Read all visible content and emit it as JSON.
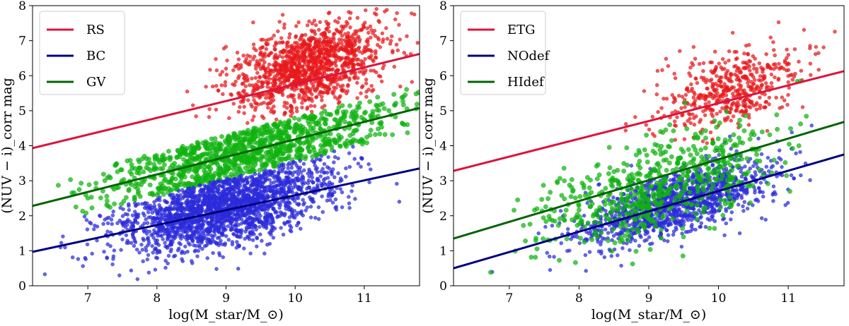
{
  "chart_data": [
    {
      "type": "scatter",
      "panel": "left",
      "xlabel": "log(M_star/M_⊙)",
      "ylabel": "(NUV − i)_corr mag",
      "xlim": [
        6.2,
        11.8
      ],
      "ylim": [
        0,
        8
      ],
      "xticks": [
        7,
        8,
        9,
        10,
        11
      ],
      "yticks": [
        0,
        1,
        2,
        3,
        4,
        5,
        6,
        7,
        8
      ],
      "legend_position": "top-left",
      "series": [
        {
          "name": "RS",
          "marker_color": "#e8191c",
          "line_color": "#dc143c",
          "line": {
            "x": [
              6.2,
              11.8
            ],
            "y": [
              3.93,
              6.62
            ]
          },
          "cloud": {
            "x_center": 10.2,
            "x_spread": 0.55,
            "y_offset_from_line": 0.45,
            "y_spread": 0.55,
            "n": 1300
          }
        },
        {
          "name": "GV",
          "marker_color": "#0fb30f",
          "line_color": "#006400",
          "line": {
            "x": [
              6.2,
              11.8
            ],
            "y": [
              2.28,
              5.08
            ]
          },
          "cloud": {
            "x_center": 9.3,
            "x_spread": 1.05,
            "y_offset_from_line": 0.0,
            "y_spread": 0.35,
            "n": 1100
          }
        },
        {
          "name": "BC",
          "marker_color": "#2b2bd9",
          "line_color": "#000080",
          "line": {
            "x": [
              6.2,
              11.8
            ],
            "y": [
              0.97,
              3.35
            ]
          },
          "cloud": {
            "x_center": 9.0,
            "x_spread": 0.75,
            "y_offset_from_line": 0.1,
            "y_spread": 0.55,
            "n": 2200
          }
        }
      ],
      "legend": [
        "RS",
        "BC",
        "GV"
      ]
    },
    {
      "type": "scatter",
      "panel": "right",
      "xlabel": "log(M_star/M_⊙)",
      "ylabel": "(NUV − i)_corr mag",
      "xlim": [
        6.2,
        11.8
      ],
      "ylim": [
        0,
        8
      ],
      "xticks": [
        7,
        8,
        9,
        10,
        11
      ],
      "yticks": [
        0,
        1,
        2,
        3,
        4,
        5,
        6,
        7,
        8
      ],
      "legend_position": "top-left",
      "series": [
        {
          "name": "ETG",
          "marker_color": "#e8191c",
          "line_color": "#dc143c",
          "line": {
            "x": [
              6.2,
              11.8
            ],
            "y": [
              3.28,
              6.13
            ]
          },
          "cloud": {
            "x_center": 10.2,
            "x_spread": 0.5,
            "y_offset_from_line": 0.3,
            "y_spread": 0.55,
            "n": 500
          }
        },
        {
          "name": "NOdef",
          "marker_color": "#2b2bd9",
          "line_color": "#000080",
          "line": {
            "x": [
              6.2,
              11.8
            ],
            "y": [
              0.5,
              3.75
            ]
          },
          "cloud": {
            "x_center": 9.4,
            "x_spread": 0.7,
            "y_offset_from_line": 0.05,
            "y_spread": 0.45,
            "n": 1300
          }
        },
        {
          "name": "HIdef",
          "marker_color": "#0fb30f",
          "line_color": "#006400",
          "line": {
            "x": [
              6.2,
              11.8
            ],
            "y": [
              1.35,
              4.68
            ]
          },
          "cloud": {
            "x_center": 9.2,
            "x_spread": 0.85,
            "y_offset_from_line": -0.3,
            "y_spread": 0.7,
            "n": 600
          }
        }
      ],
      "legend": [
        "ETG",
        "NOdef",
        "HIdef"
      ]
    }
  ]
}
